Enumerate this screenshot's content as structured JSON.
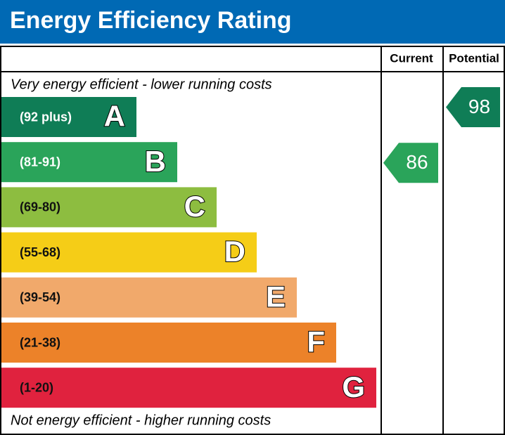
{
  "header": {
    "title": "Energy Efficiency Rating",
    "color": "#0069b4"
  },
  "table": {
    "columns": [
      "Current",
      "Potential"
    ],
    "top_note": "Very energy efficient - lower running costs",
    "bottom_note": "Not energy efficient - higher running costs",
    "bands": [
      {
        "range": "(92 plus)",
        "letter": "A",
        "color": "#0f7d56"
      },
      {
        "range": "(81-91)",
        "letter": "B",
        "color": "#2aa45a"
      },
      {
        "range": "(69-80)",
        "letter": "C",
        "color": "#8dbd40"
      },
      {
        "range": "(55-68)",
        "letter": "D",
        "color": "#f5cd17"
      },
      {
        "range": "(39-54)",
        "letter": "E",
        "color": "#f1a96b"
      },
      {
        "range": "(21-38)",
        "letter": "F",
        "color": "#ec8229"
      },
      {
        "range": "(1-20)",
        "letter": "G",
        "color": "#e0223e"
      }
    ],
    "current": {
      "rating": "86",
      "band": 1
    },
    "potential": {
      "rating": "98",
      "band": 0
    }
  }
}
